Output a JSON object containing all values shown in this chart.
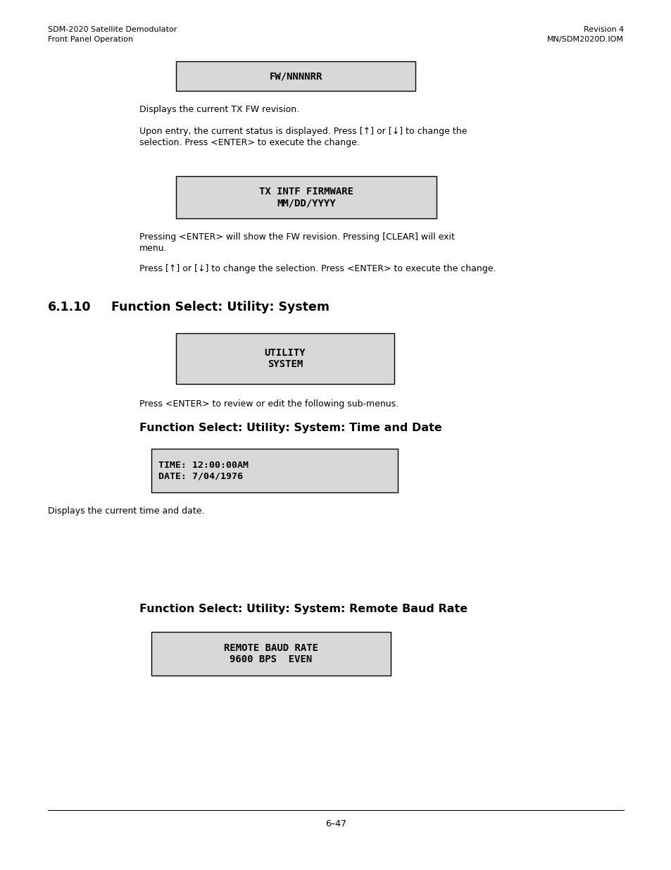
{
  "header_left_line1": "SDM-2020 Satellite Demodulator",
  "header_left_line2": "Front Panel Operation",
  "header_right_line1": "Revision 4",
  "header_right_line2": "MN/SDM2020D.IOM",
  "box1_text": "FW/NNNNRR",
  "para1": "Displays the current TX FW revision.",
  "para2a": "Upon entry, the current status is displayed. Press [↑] or [↓] to change the",
  "para2b": "selection. Press <ENTER> to execute the change.",
  "box2_line1": "TX INTF FIRMWARE",
  "box2_line2": "MM/DD/YYYY",
  "para3a": "Pressing <ENTER> will show the FW revision. Pressing [CLEAR] will exit",
  "para3b": "menu.",
  "para4": "Press [↑] or [↓] to change the selection. Press <ENTER> to execute the change.",
  "section_num": "6.1.10",
  "section_title": "Function Select: Utility: System",
  "box3_line1": "UTILITY",
  "box3_line2": "SYSTEM",
  "para5": "Press <ENTER> to review or edit the following sub-menus.",
  "subsec1_title": "Function Select: Utility: System: Time and Date",
  "box4_line1": "TIME: 12:00:00AM",
  "box4_line2": "DATE: 7/04/1976",
  "para6": "Displays the current time and date.",
  "subsec2_title": "Function Select: Utility: System: Remote Baud Rate",
  "box5_line1": "REMOTE BAUD RATE",
  "box5_line2": "9600 BPS  EVEN",
  "footer_text": "6–47",
  "bg_color": "#ffffff",
  "box_bg_color": "#d8d8d8",
  "box_border_color": "#000000",
  "text_color": "#000000",
  "header_fontsize": 8.0,
  "body_fontsize": 9.0,
  "mono_fontsize": 9.5,
  "section_title_fontsize": 12.5,
  "subsec_title_fontsize": 11.5
}
